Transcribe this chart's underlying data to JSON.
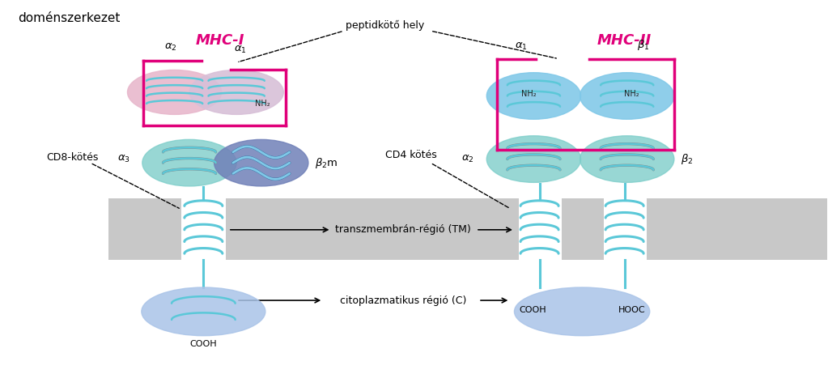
{
  "title": "doménszerkezet",
  "bg_color": "#ffffff",
  "magenta_color": "#e0007a",
  "cyan_color": "#5bc8d8",
  "cyan_light": "#a0dce8",
  "teal_color": "#7ececa",
  "pink_color": "#e8b8cc",
  "lavender_color": "#d8c0d8",
  "blue_purple_color": "#7080b8",
  "light_blue_color": "#80c8e8",
  "lblue_color": "#aac4e8",
  "gray_color": "#c8c8c8",
  "mhc1_label": "MHC-I",
  "mhc2_label": "MHC-II",
  "peptide_label": "peptidkötő hely",
  "cd8_label": "CD8-kötés",
  "cd4_label": "CD4 kötés",
  "tm_label": "transzmembrán-régió (TM)",
  "cyto_label": "citoplazmatikus régió (C)",
  "nh2_label": "NH₂",
  "cooh_label": "COOH",
  "hooc_label": "HOOC"
}
